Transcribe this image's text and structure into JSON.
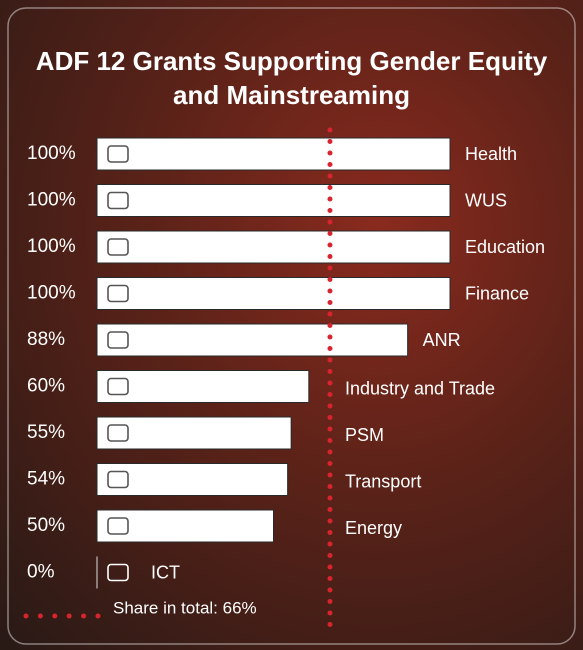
{
  "chart_data": {
    "type": "bar",
    "orientation": "horizontal",
    "title": "ADF 12 Grants Supporting Gender Equity and Mainstreaming",
    "categories": [
      "Health",
      "WUS",
      "Education",
      "Finance",
      "ANR",
      "Industry and Trade",
      "PSM",
      "Transport",
      "Energy",
      "ICT"
    ],
    "values": [
      100,
      100,
      100,
      100,
      88,
      60,
      55,
      54,
      50,
      0
    ],
    "value_labels": [
      "100%",
      "100%",
      "100%",
      "100%",
      "88%",
      "60%",
      "55%",
      "54%",
      "50%",
      "0%"
    ],
    "color": "#ffffff",
    "xlim": [
      0,
      100
    ],
    "reference": {
      "value": 66,
      "label": "Share in total: 66%",
      "color": "#d8242f"
    }
  }
}
